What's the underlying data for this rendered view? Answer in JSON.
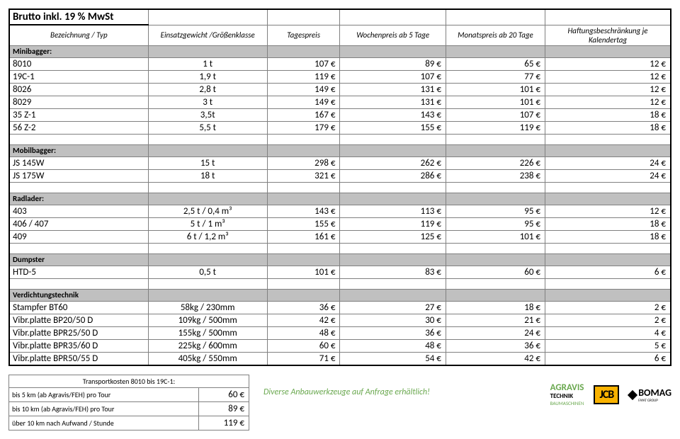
{
  "title": "Brutto inkl. 19 % MwSt",
  "columns": [
    "Bezeichnung / Typ",
    "Einsatzgewicht /Größenklasse",
    "Tagespreis",
    "Wochenpreis ab 5 Tage",
    "Monatspreis ab 20 Tage",
    "Haftungsbeschränkung je Kalendertag"
  ],
  "sections": [
    {
      "name": "Minibagger:",
      "rows": [
        {
          "typ": "8010",
          "gew": "1 t",
          "tag": "107 €",
          "woche": "89 €",
          "monat": "65 €",
          "haft": "12 €"
        },
        {
          "typ": "19C-1",
          "gew": "1,9 t",
          "tag": "119 €",
          "woche": "107 €",
          "monat": "77 €",
          "haft": "12 €"
        },
        {
          "typ": "8026",
          "gew": "2,8 t",
          "tag": "149 €",
          "woche": "131 €",
          "monat": "101 €",
          "haft": "12 €"
        },
        {
          "typ": "8029",
          "gew": "3 t",
          "tag": "149 €",
          "woche": "131 €",
          "monat": "101 €",
          "haft": "12 €"
        },
        {
          "typ": "35 Z-1",
          "gew": "3,5t",
          "tag": "167 €",
          "woche": "143 €",
          "monat": "107 €",
          "haft": "18 €"
        },
        {
          "typ": "56 Z-2",
          "gew": "5,5 t",
          "tag": "179 €",
          "woche": "155 €",
          "monat": "119 €",
          "haft": "18 €"
        }
      ]
    },
    {
      "name": "Mobilbagger:",
      "rows": [
        {
          "typ": "JS 145W",
          "gew": "15 t",
          "tag": "298 €",
          "woche": "262 €",
          "monat": "226 €",
          "haft": "24 €"
        },
        {
          "typ": "JS 175W",
          "gew": "18 t",
          "tag": "321 €",
          "woche": "286 €",
          "monat": "238 €",
          "haft": "24 €"
        }
      ]
    },
    {
      "name": "Radlader:",
      "rows": [
        {
          "typ": "403",
          "gew": "2,5 t / 0,4 m³",
          "tag": "143 €",
          "woche": "113 €",
          "monat": "95 €",
          "haft": "12 €"
        },
        {
          "typ": "406 / 407",
          "gew": "5 t / 1 m³",
          "tag": "155 €",
          "woche": "119 €",
          "monat": "95 €",
          "haft": "18 €"
        },
        {
          "typ": "409",
          "gew": "6 t / 1,2 m³",
          "tag": "161 €",
          "woche": "125 €",
          "monat": "101 €",
          "haft": "18 €"
        }
      ]
    },
    {
      "name": "Dumpster",
      "rows": [
        {
          "typ": "HTD-5",
          "gew": "0,5 t",
          "tag": "101 €",
          "woche": "83 €",
          "monat": "60 €",
          "haft": "6 €"
        }
      ]
    },
    {
      "name": "Verdichtungstechnik",
      "rows": [
        {
          "typ": "Stampfer BT60",
          "gew": "58kg / 230mm",
          "tag": "36 €",
          "woche": "27 €",
          "monat": "18 €",
          "haft": "2 €"
        },
        {
          "typ": "Vibr.platte BP20/50 D",
          "gew": "109kg / 500mm",
          "tag": "42 €",
          "woche": "30 €",
          "monat": "21 €",
          "haft": "2 €"
        },
        {
          "typ": "Vibr.platte BPR25/50 D",
          "gew": "155kg / 500mm",
          "tag": "48 €",
          "woche": "36 €",
          "monat": "24 €",
          "haft": "4 €"
        },
        {
          "typ": "Vibr.platte BPR35/60 D",
          "gew": "225kg / 600mm",
          "tag": "60 €",
          "woche": "48 €",
          "monat": "36 €",
          "haft": "5 €"
        },
        {
          "typ": "Vibr.platte BPR50/55 D",
          "gew": "405kg / 550mm",
          "tag": "71 €",
          "woche": "54 €",
          "monat": "42 €",
          "haft": "6 €"
        }
      ]
    }
  ],
  "transport": {
    "title": "Transportkosten 8010 bis 19C-1:",
    "rows": [
      {
        "label": "bis 5 km (ab Agravis/FEH) pro Tour",
        "price": "60 €"
      },
      {
        "label": "bis 10 km (ab Agravis/FEH) pro Tour",
        "price": "89 €"
      },
      {
        "label": "über 10 km nach Aufwand / Stunde",
        "price": "119 €"
      }
    ]
  },
  "note": "Diverse Anbauwerkzeuge auf Anfrage erhältlich!",
  "logos": {
    "agravis_top": "AGRAVIS",
    "agravis_mid": "TECHNIK",
    "agravis_sub": "BAUMASCHINEN",
    "jcb": "JCB",
    "bomag": "BOMAG",
    "bomag_sub": "FAYAT GROUP"
  }
}
